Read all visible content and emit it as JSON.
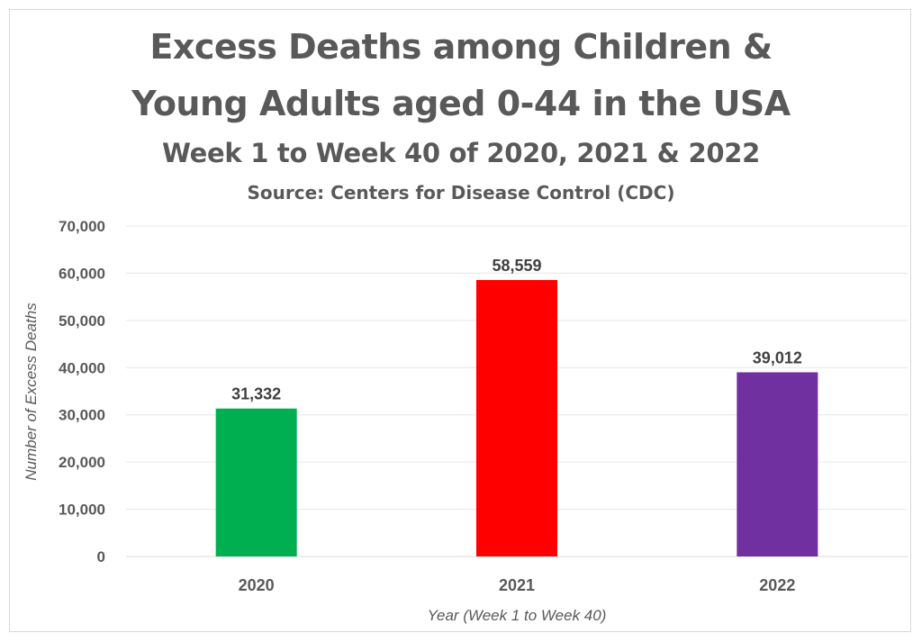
{
  "chart_data": {
    "type": "bar",
    "title": "Excess Deaths among Children & Young Adults aged 0-44 in the USA",
    "title_line1": "Excess Deaths among Children &",
    "title_line2": "Young Adults aged 0-44 in the USA",
    "subtitle": "Week 1 to Week 40 of 2020, 2021 & 2022",
    "source": "Source: Centers for Disease Control (CDC)",
    "xlabel": "Year (Week 1 to Week 40)",
    "ylabel": "Number of Excess Deaths",
    "categories": [
      "2020",
      "2021",
      "2022"
    ],
    "values": [
      31332,
      58559,
      39012
    ],
    "value_labels": [
      "31,332",
      "58,559",
      "39,012"
    ],
    "colors": [
      "#00b050",
      "#ff0000",
      "#7030a0"
    ],
    "ylim": [
      0,
      70000
    ],
    "yticks": [
      0,
      10000,
      20000,
      30000,
      40000,
      50000,
      60000,
      70000
    ],
    "ytick_labels": [
      "0",
      "10,000",
      "20,000",
      "30,000",
      "40,000",
      "50,000",
      "60,000",
      "70,000"
    ],
    "grid": true,
    "legend": "none"
  }
}
